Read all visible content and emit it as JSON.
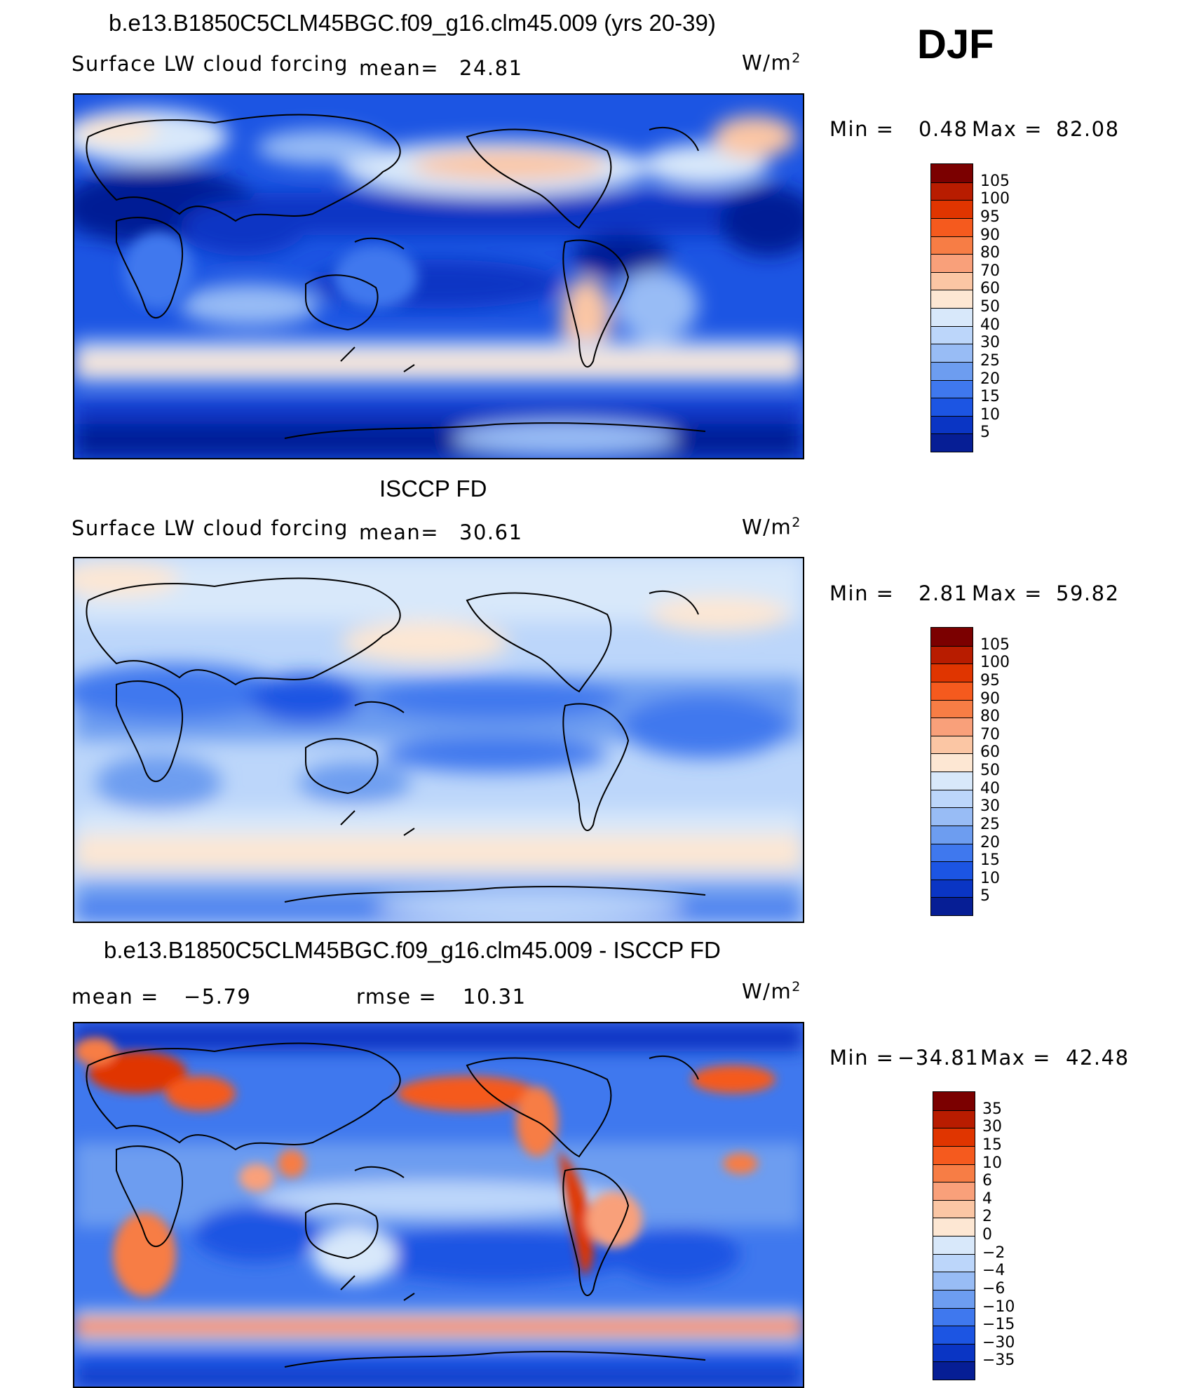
{
  "season": "DJF",
  "units": "W/m",
  "units_sup": "2",
  "chart_data": [
    {
      "type": "heatmap",
      "panel": "model",
      "title": "b.e13.B1850C5CLM45BGC.f09_g16.clm45.009 (yrs 20-39)",
      "variable": "Surface LW cloud forcing",
      "mean_label": "mean=",
      "mean": "24.81",
      "min_label": "Min =",
      "min": "0.48",
      "max_label": "Max =",
      "max": "82.08",
      "levels": [
        "105",
        "100",
        "95",
        "90",
        "80",
        "70",
        "60",
        "50",
        "40",
        "30",
        "25",
        "20",
        "15",
        "10",
        "5"
      ],
      "colors": [
        "#7b0000",
        "#b81c00",
        "#e03500",
        "#f55a1e",
        "#f77d45",
        "#f9a07a",
        "#fbc6a4",
        "#fde7d3",
        "#d8e8fa",
        "#bcd6fa",
        "#98bcf5",
        "#6d9df0",
        "#3f78ee",
        "#1c55e3",
        "#0a35c4",
        "#061e95"
      ]
    },
    {
      "type": "heatmap",
      "panel": "observations",
      "title": "ISCCP FD",
      "variable": "Surface LW cloud forcing",
      "mean_label": "mean=",
      "mean": "30.61",
      "min_label": "Min =",
      "min": "2.81",
      "max_label": "Max =",
      "max": "59.82",
      "levels": [
        "105",
        "100",
        "95",
        "90",
        "80",
        "70",
        "60",
        "50",
        "40",
        "30",
        "25",
        "20",
        "15",
        "10",
        "5"
      ],
      "colors": [
        "#7b0000",
        "#b81c00",
        "#e03500",
        "#f55a1e",
        "#f77d45",
        "#f9a07a",
        "#fbc6a4",
        "#fde7d3",
        "#d8e8fa",
        "#bcd6fa",
        "#98bcf5",
        "#6d9df0",
        "#3f78ee",
        "#1c55e3",
        "#0a35c4",
        "#061e95"
      ]
    },
    {
      "type": "heatmap",
      "panel": "difference",
      "title": "b.e13.B1850C5CLM45BGC.f09_g16.clm45.009 - ISCCP FD",
      "mean_label": "mean =",
      "mean": "−5.79",
      "rmse_label": "rmse =",
      "rmse": "10.31",
      "min_label": "Min =",
      "min": "−34.81",
      "max_label": "Max =",
      "max": "42.48",
      "levels": [
        "35",
        "30",
        "15",
        "10",
        "6",
        "4",
        "2",
        "0",
        "−2",
        "−4",
        "−6",
        "−10",
        "−15",
        "−30",
        "−35"
      ],
      "colors": [
        "#7b0000",
        "#b81c00",
        "#e03500",
        "#f55a1e",
        "#f77d45",
        "#f9a07a",
        "#fbc6a4",
        "#fde7d3",
        "#d8e8fa",
        "#bcd6fa",
        "#98bcf5",
        "#6d9df0",
        "#3f78ee",
        "#1c55e3",
        "#0a35c4",
        "#061e95"
      ]
    }
  ]
}
